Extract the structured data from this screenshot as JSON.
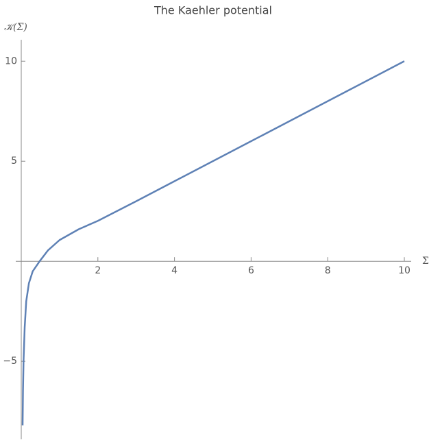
{
  "chart_data": {
    "type": "line",
    "title": "The Kaehler potential",
    "x_label": "Σ",
    "y_label": "𝒦(Σ)",
    "x": [
      0.036,
      0.045,
      0.06,
      0.09,
      0.13,
      0.2,
      0.3,
      0.48,
      0.7,
      1,
      1.5,
      2,
      3,
      4,
      6,
      8,
      10
    ],
    "series": [
      {
        "name": "K",
        "color": "#5e81b5",
        "values": [
          -8.2,
          -6.5,
          -5,
          -3.3,
          -2,
          -1.1,
          -0.5,
          0,
          0.55,
          1.06,
          1.6,
          2.02,
          3.0,
          4.0,
          6.0,
          8.0,
          10.0
        ]
      }
    ],
    "xlim": [
      0,
      10
    ],
    "ylim": [
      -8.9,
      10.9
    ],
    "xticks": [
      2,
      4,
      6,
      8,
      10
    ],
    "yticks": [
      {
        "value": -5,
        "label": "−5"
      },
      5,
      10
    ]
  }
}
